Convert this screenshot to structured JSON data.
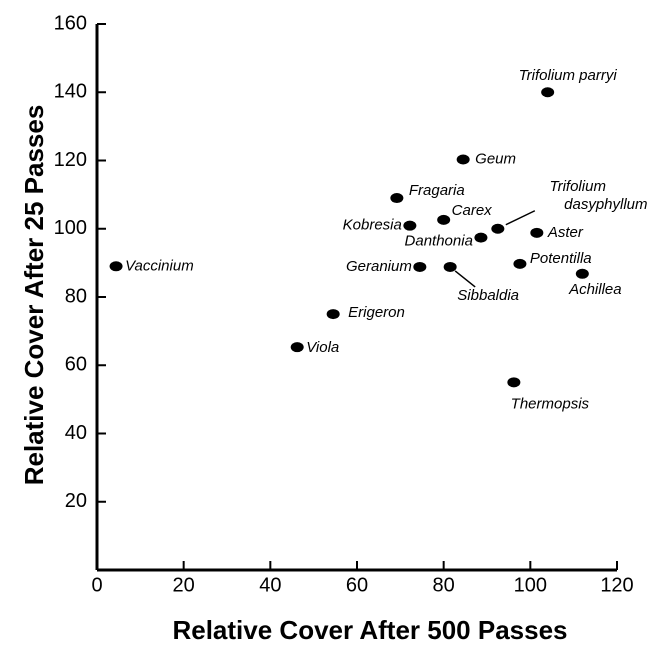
{
  "chart_data": {
    "type": "scatter",
    "x_label": "Relative Cover After 500 Passes",
    "y_label": "Relative Cover After 25 Passes",
    "xlim": [
      0,
      120
    ],
    "xticks": [
      0,
      20,
      40,
      60,
      80,
      100,
      120
    ],
    "ylim": [
      0,
      160
    ],
    "yticks": [
      20,
      40,
      60,
      80,
      100,
      120,
      140,
      160
    ],
    "color": "#000000",
    "labels": [
      "Trifolium parryi",
      "Geum",
      "Fragaria",
      "Carex",
      "Kobresia",
      "Trifolium dasyphyllum",
      "Danthonia",
      "Aster",
      "Vaccinium",
      "Geranium",
      "Sibbaldia",
      "Potentilla",
      "Achillea",
      "Erigeron",
      "Viola",
      "Thermopsis"
    ],
    "x": [
      104,
      84.5,
      69.2,
      80,
      72.2,
      92.5,
      88.6,
      101.5,
      4.4,
      74.5,
      81.5,
      97.6,
      112,
      54.5,
      46.2,
      96.2
    ],
    "y": [
      140,
      120.3,
      109,
      102.6,
      100.9,
      100,
      97.4,
      98.8,
      89,
      88.8,
      88.8,
      89.7,
      86.8,
      75,
      65.3,
      55
    ]
  }
}
